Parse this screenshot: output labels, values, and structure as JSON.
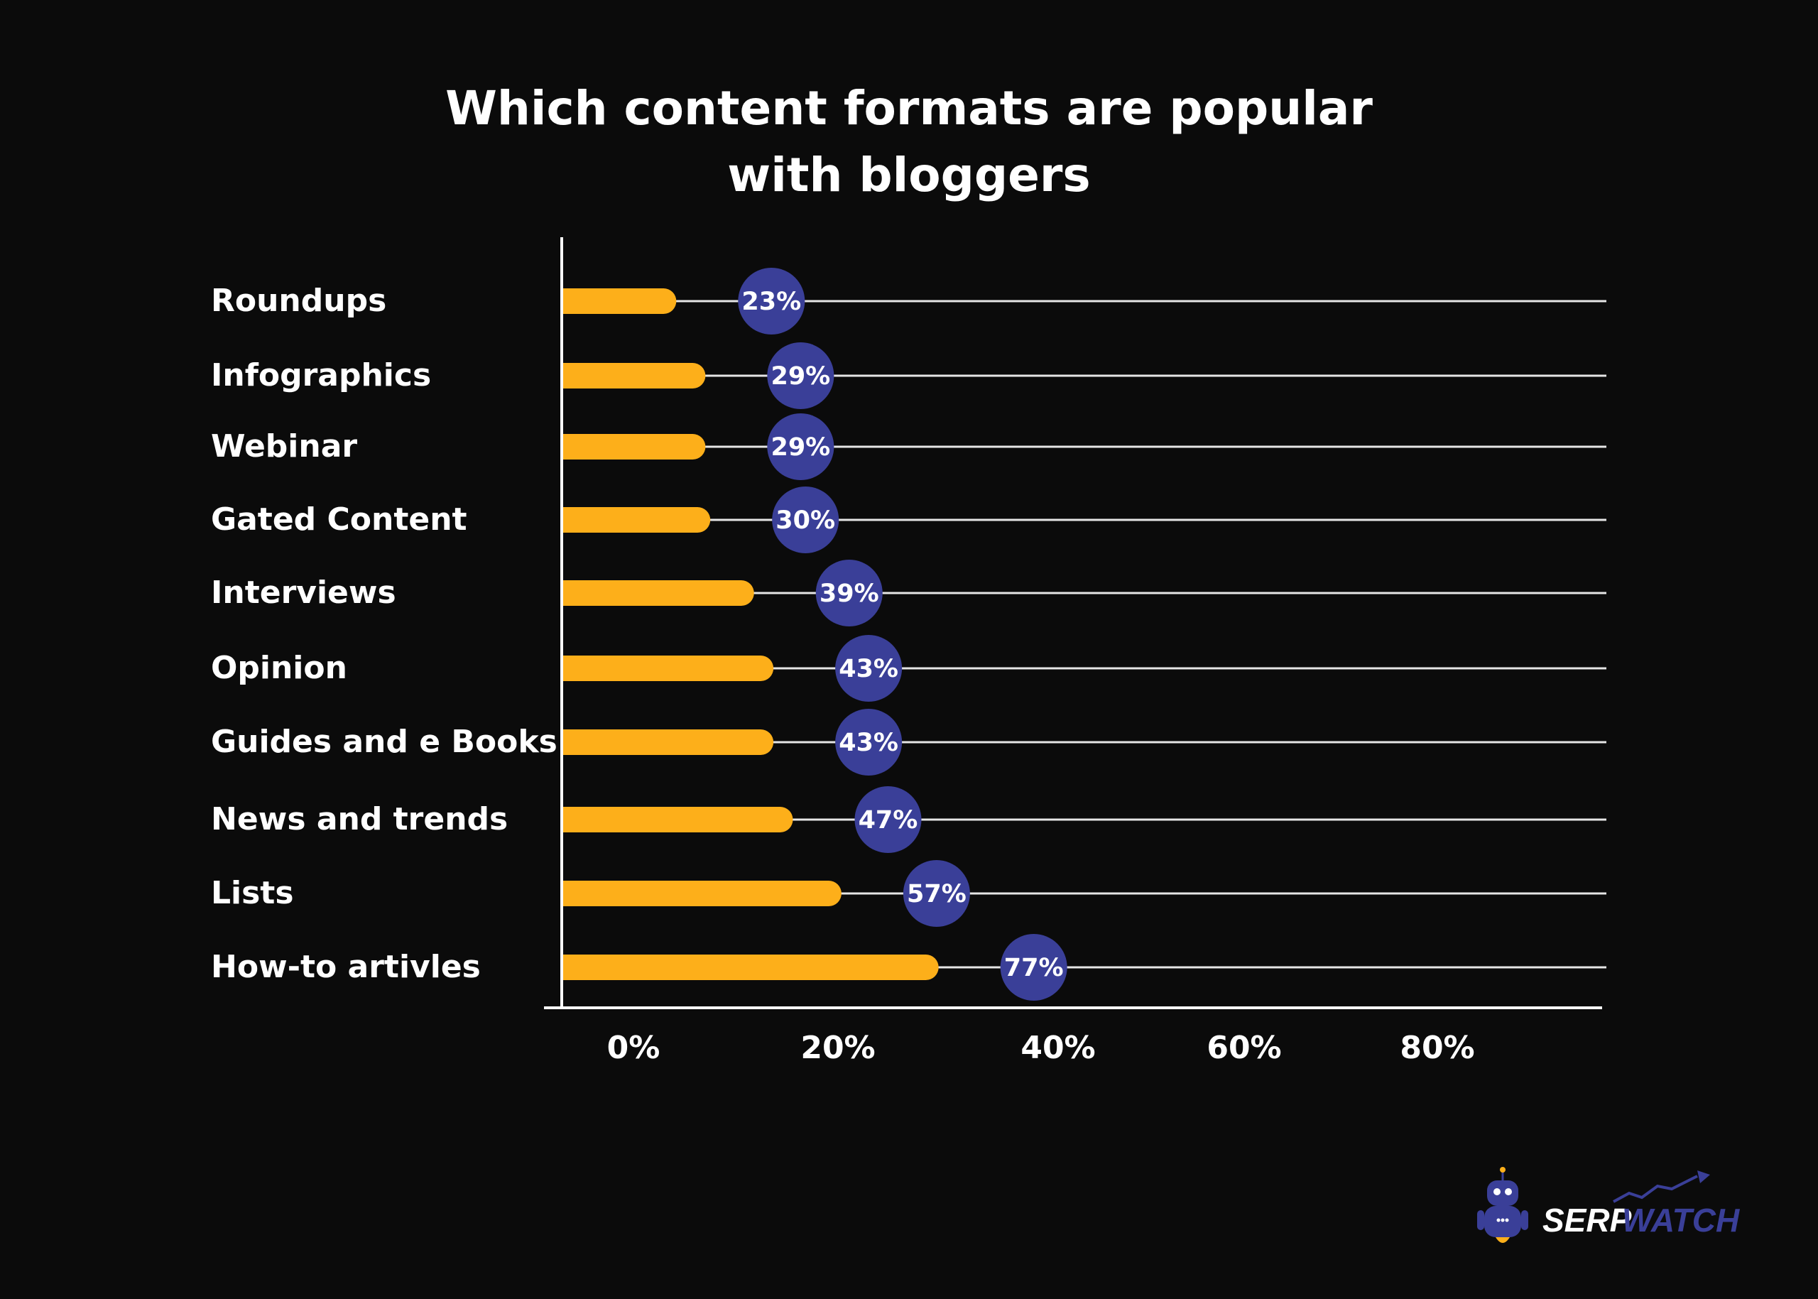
{
  "chart_data": {
    "type": "bar",
    "orientation": "horizontal",
    "title": [
      "Which content formats are popular",
      "with bloggers"
    ],
    "xlabel": "",
    "ylabel": "",
    "categories": [
      "Roundups",
      "Infographics",
      "Webinar",
      "Gated Content",
      "Interviews",
      "Opinion",
      "Guides and e Books",
      "News and trends",
      "Lists",
      "How-to artivles"
    ],
    "values": [
      23,
      29,
      29,
      30,
      39,
      43,
      43,
      47,
      57,
      77
    ],
    "value_labels": [
      "23%",
      "29%",
      "29%",
      "30%",
      "39%",
      "43%",
      "43%",
      "47%",
      "57%",
      "77%"
    ],
    "x_ticks": [
      "0%",
      "20%",
      "40%",
      "60%",
      "80%"
    ],
    "xlim": [
      0,
      100
    ],
    "grid": true,
    "colors": {
      "bar": "#fdaf1a",
      "bubble": "#3a3f98",
      "text": "#ffffff",
      "background": "#0b0b0b"
    }
  },
  "brand": {
    "logo_text_1": "SERP",
    "logo_text_2": "WATCH",
    "icon": "robot-icon"
  }
}
